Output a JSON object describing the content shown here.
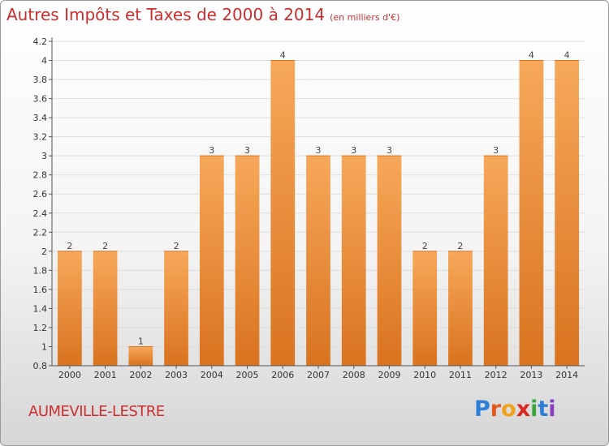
{
  "header": {
    "title": "Autres Impôts et Taxes de 2000 à 2014",
    "subtitle": "(en milliers d'€)"
  },
  "footer": {
    "place": "AUMEVILLE-LESTRE",
    "brand_letters": [
      "P",
      "r",
      "o",
      "x",
      "i",
      "t",
      "i"
    ],
    "brand_colors": [
      "#2e7fd8",
      "#e05a1c",
      "#f2a21a",
      "#d8281f",
      "#3aa53a",
      "#2e7fd8",
      "#8a3fc0"
    ]
  },
  "colors": {
    "bar_light": "#f7a85a",
    "bar_dark": "#d9731f",
    "grid": "#dddddd",
    "axis": "#555555"
  },
  "chart_data": {
    "type": "bar",
    "categories": [
      "2000",
      "2001",
      "2002",
      "2003",
      "2004",
      "2005",
      "2006",
      "2007",
      "2008",
      "2009",
      "2010",
      "2011",
      "2012",
      "2013",
      "2014"
    ],
    "values": [
      2,
      2,
      1,
      2,
      3,
      3,
      4,
      3,
      3,
      3,
      2,
      2,
      3,
      4,
      4
    ],
    "value_labels": [
      "2",
      "2",
      "1",
      "2",
      "3",
      "3",
      "4",
      "3",
      "3",
      "3",
      "2",
      "2",
      "3",
      "4",
      "4"
    ],
    "y_ticks": [
      "0.8",
      "1",
      "1.2",
      "1.4",
      "1.6",
      "1.8",
      "2",
      "2.2",
      "2.4",
      "2.6",
      "2.8",
      "3",
      "3.2",
      "3.4",
      "3.6",
      "3.8",
      "4",
      "4.2"
    ],
    "ylim": [
      0.8,
      4.2
    ],
    "grid": true,
    "title": "Autres Impôts et Taxes de 2000 à 2014",
    "subtitle": "(en milliers d'€)"
  }
}
